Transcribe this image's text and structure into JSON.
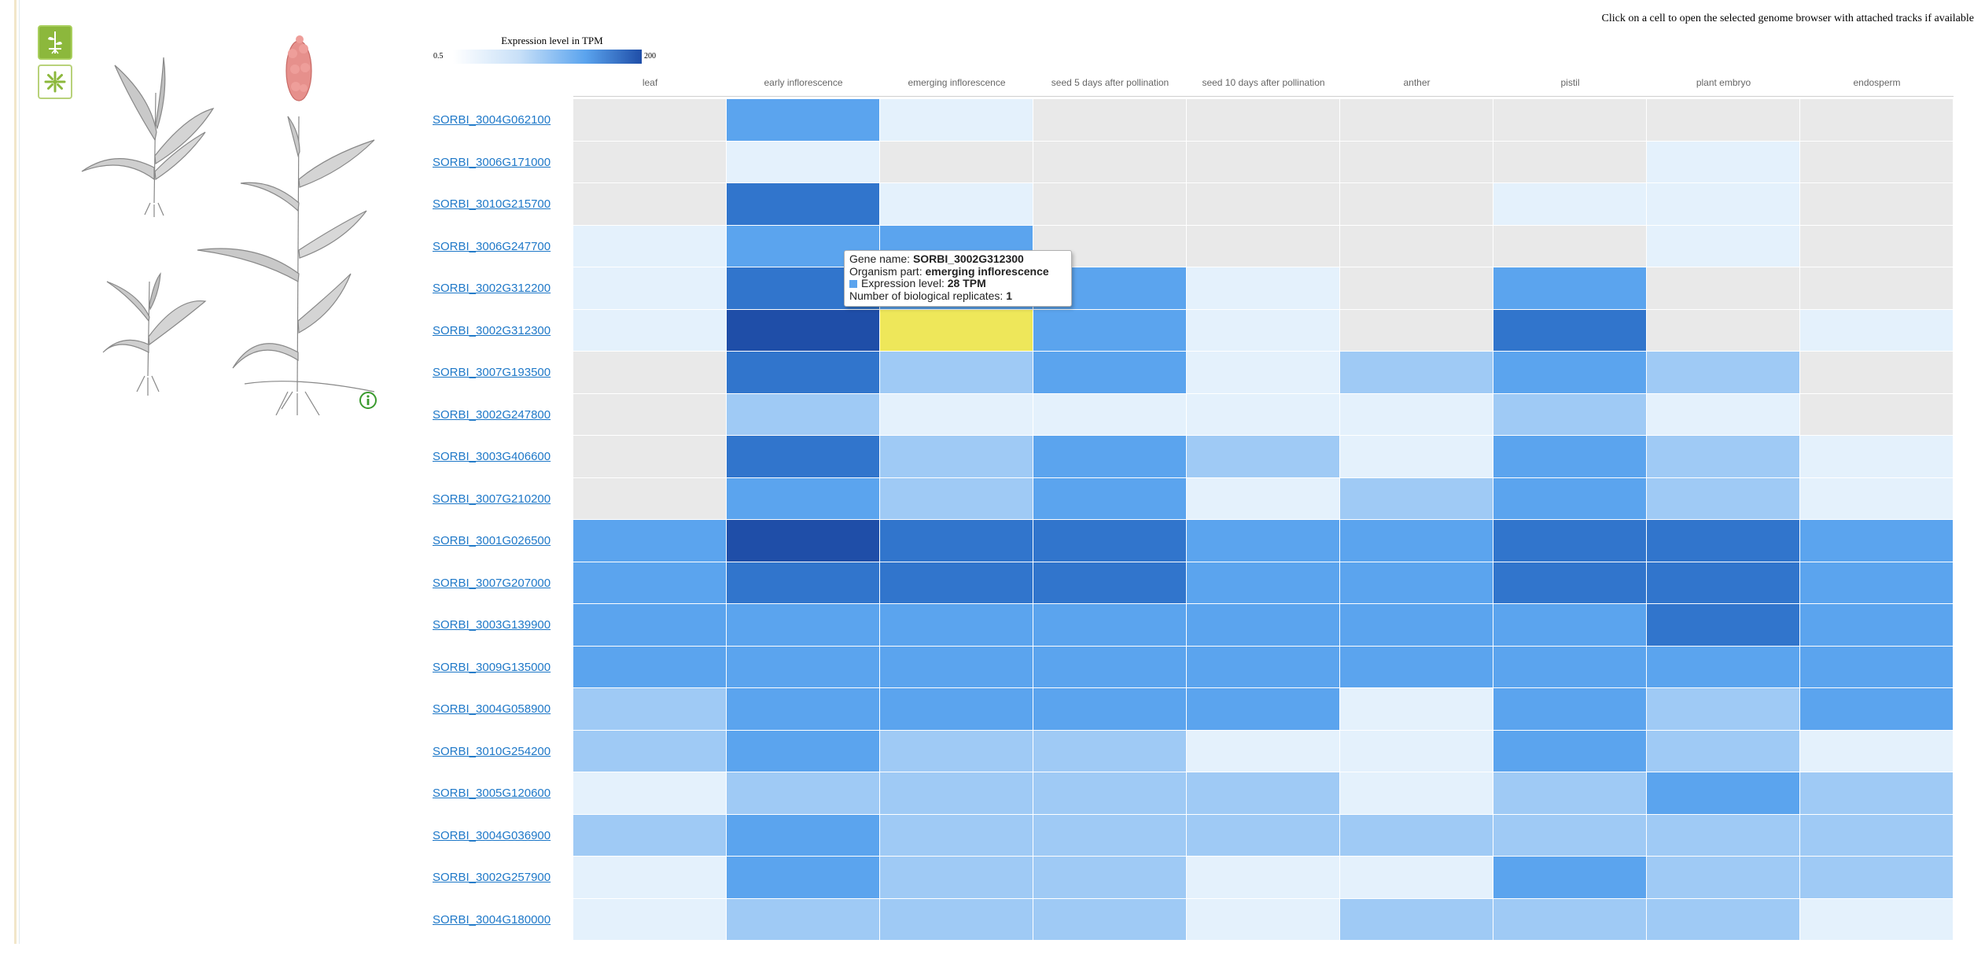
{
  "hint_text": "Click on a cell to open the selected genome browser with attached tracks if available",
  "legend": {
    "title": "Expression level in TPM",
    "min_label": "0.5",
    "max_label": "200",
    "low_color": "#ffffff",
    "high_color": "#1f4ea8"
  },
  "sidebar": {
    "buttons": [
      {
        "icon": "plant-icon",
        "selected": true
      },
      {
        "icon": "flower-icon",
        "selected": false
      }
    ],
    "info_icon": "info-circle-icon"
  },
  "columns": [
    "leaf",
    "early inflorescence",
    "emerging inflorescence",
    "seed 5 days after pollination",
    "seed 10 days after pollination",
    "anther",
    "pistil",
    "plant embryo",
    "endosperm"
  ],
  "rows": [
    {
      "gene": "SORBI_3004G062100",
      "levels": [
        0,
        3,
        1,
        0,
        0,
        0,
        0,
        0,
        0
      ]
    },
    {
      "gene": "SORBI_3006G171000",
      "levels": [
        0,
        1,
        0,
        0,
        0,
        0,
        0,
        1,
        0
      ]
    },
    {
      "gene": "SORBI_3010G215700",
      "levels": [
        0,
        4,
        1,
        0,
        0,
        0,
        1,
        1,
        0
      ]
    },
    {
      "gene": "SORBI_3006G247700",
      "levels": [
        1,
        3,
        3,
        0,
        0,
        0,
        0,
        1,
        0
      ]
    },
    {
      "gene": "SORBI_3002G312200",
      "levels": [
        1,
        4,
        3,
        3,
        1,
        0,
        3,
        0,
        0
      ]
    },
    {
      "gene": "SORBI_3002G312300",
      "levels": [
        1,
        5,
        9,
        3,
        1,
        0,
        4,
        0,
        1
      ]
    },
    {
      "gene": "SORBI_3007G193500",
      "levels": [
        0,
        4,
        2,
        3,
        1,
        2,
        3,
        2,
        0
      ]
    },
    {
      "gene": "SORBI_3002G247800",
      "levels": [
        0,
        2,
        1,
        1,
        1,
        1,
        2,
        1,
        0
      ]
    },
    {
      "gene": "SORBI_3003G406600",
      "levels": [
        0,
        4,
        2,
        3,
        2,
        1,
        3,
        2,
        1
      ]
    },
    {
      "gene": "SORBI_3007G210200",
      "levels": [
        0,
        3,
        2,
        3,
        1,
        2,
        3,
        2,
        1
      ]
    },
    {
      "gene": "SORBI_3001G026500",
      "levels": [
        3,
        5,
        4,
        4,
        3,
        3,
        4,
        4,
        3
      ]
    },
    {
      "gene": "SORBI_3007G207000",
      "levels": [
        3,
        4,
        4,
        4,
        3,
        3,
        4,
        4,
        3
      ]
    },
    {
      "gene": "SORBI_3003G139900",
      "levels": [
        3,
        3,
        3,
        3,
        3,
        3,
        3,
        4,
        3
      ]
    },
    {
      "gene": "SORBI_3009G135000",
      "levels": [
        3,
        3,
        3,
        3,
        3,
        3,
        3,
        3,
        3
      ]
    },
    {
      "gene": "SORBI_3004G058900",
      "levels": [
        2,
        3,
        3,
        3,
        3,
        1,
        3,
        2,
        3
      ]
    },
    {
      "gene": "SORBI_3010G254200",
      "levels": [
        2,
        3,
        2,
        2,
        1,
        1,
        3,
        2,
        1
      ]
    },
    {
      "gene": "SORBI_3005G120600",
      "levels": [
        1,
        2,
        2,
        2,
        2,
        1,
        2,
        3,
        2
      ]
    },
    {
      "gene": "SORBI_3004G036900",
      "levels": [
        2,
        3,
        2,
        2,
        2,
        2,
        2,
        2,
        2
      ]
    },
    {
      "gene": "SORBI_3002G257900",
      "levels": [
        1,
        3,
        2,
        2,
        1,
        1,
        3,
        2,
        2
      ]
    },
    {
      "gene": "SORBI_3004G180000",
      "levels": [
        1,
        2,
        2,
        2,
        1,
        2,
        2,
        2,
        1
      ]
    }
  ],
  "level_colors": {
    "0": "#e9e9e9",
    "1": "#e4f1fc",
    "2": "#9fcaf5",
    "3": "#5ba4ee",
    "4": "#3175cc",
    "5": "#1f4ea8",
    "9": "#eee75a"
  },
  "tooltip": {
    "gene_label": "Gene name:",
    "gene_value": "SORBI_3002G312300",
    "part_label": "Organism part:",
    "part_value": "emerging inflorescence",
    "expr_label": "Expression level:",
    "expr_value": "28 TPM",
    "expr_swatch_color": "#5ba4ee",
    "reps_label": "Number of biological replicates:",
    "reps_value": "1"
  }
}
